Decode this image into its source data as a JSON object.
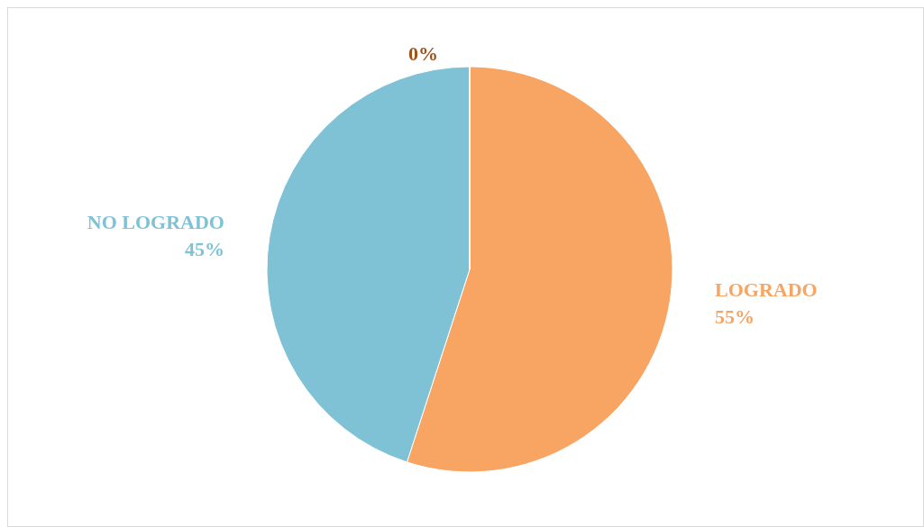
{
  "chart_data": {
    "type": "pie",
    "categories": [
      "LOGRADO",
      "NO LOGRADO",
      null
    ],
    "values": [
      55,
      45,
      0
    ],
    "colors": [
      "#f8a462",
      "#7fc2d6",
      "#a0521b"
    ],
    "value_labels": [
      "55%",
      "45%",
      "0%"
    ]
  }
}
